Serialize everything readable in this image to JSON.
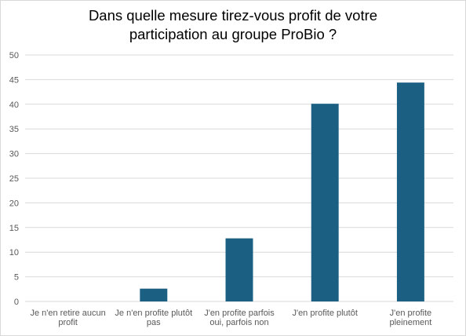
{
  "chart_data": {
    "type": "bar",
    "title_lines": [
      "Dans quelle mesure tirez-vous profit de votre",
      "participation au groupe ProBio ?"
    ],
    "categories": [
      [
        "Je n'en retire aucun",
        "profit"
      ],
      [
        "Je n'en profite plutôt",
        "pas"
      ],
      [
        "J'en profite parfois",
        "oui, parfois non"
      ],
      [
        "J'en profite plutôt"
      ],
      [
        "J'en profite",
        "pleinement"
      ]
    ],
    "values": [
      0,
      2.6,
      12.8,
      40.1,
      44.4
    ],
    "ylim": [
      0,
      50
    ],
    "yticks": [
      "0",
      "5",
      "10",
      "15",
      "20",
      "25",
      "30",
      "35",
      "40",
      "45",
      "50"
    ],
    "grid": true,
    "bar_color": "#1b5f82",
    "grid_color": "#d9d9d9",
    "xlabel": "",
    "ylabel": ""
  }
}
